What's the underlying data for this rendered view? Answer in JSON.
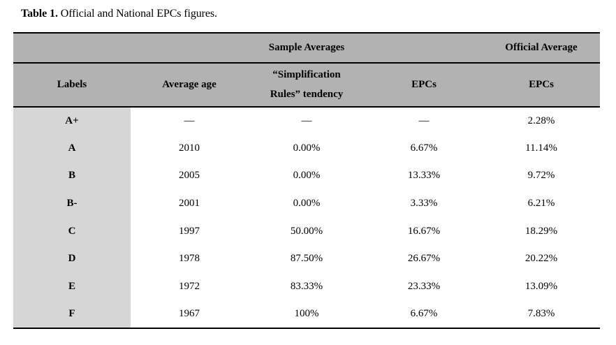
{
  "caption": {
    "label": "Table 1.",
    "text": "Official and National EPCs figures."
  },
  "table": {
    "group_headers": [
      {
        "label": "",
        "span": 1
      },
      {
        "label": "Sample Averages",
        "span": 3
      },
      {
        "label": "Official Average",
        "span": 1
      }
    ],
    "column_headers": [
      "Labels",
      "Average age",
      "“Simplification\nRules” tendency",
      "EPCs",
      "EPCs"
    ],
    "rows": [
      {
        "label": "A+",
        "average_age": "—",
        "simplification_rules_tendency": "—",
        "epcs": "—",
        "official_epcs": "2.28%"
      },
      {
        "label": "A",
        "average_age": "2010",
        "simplification_rules_tendency": "0.00%",
        "epcs": "6.67%",
        "official_epcs": "11.14%"
      },
      {
        "label": "B",
        "average_age": "2005",
        "simplification_rules_tendency": "0.00%",
        "epcs": "13.33%",
        "official_epcs": "9.72%"
      },
      {
        "label": "B-",
        "average_age": "2001",
        "simplification_rules_tendency": "0.00%",
        "epcs": "3.33%",
        "official_epcs": "6.21%"
      },
      {
        "label": "C",
        "average_age": "1997",
        "simplification_rules_tendency": "50.00%",
        "epcs": "16.67%",
        "official_epcs": "18.29%"
      },
      {
        "label": "D",
        "average_age": "1978",
        "simplification_rules_tendency": "87.50%",
        "epcs": "26.67%",
        "official_epcs": "20.22%"
      },
      {
        "label": "E",
        "average_age": "1972",
        "simplification_rules_tendency": "83.33%",
        "epcs": "23.33%",
        "official_epcs": "13.09%"
      },
      {
        "label": "F",
        "average_age": "1967",
        "simplification_rules_tendency": "100%",
        "epcs": "6.67%",
        "official_epcs": "7.83%"
      }
    ],
    "colors": {
      "header_bg": "#b2b2b2",
      "label_column_bg": "#d6d6d6",
      "border": "#000000",
      "text": "#000000"
    }
  }
}
